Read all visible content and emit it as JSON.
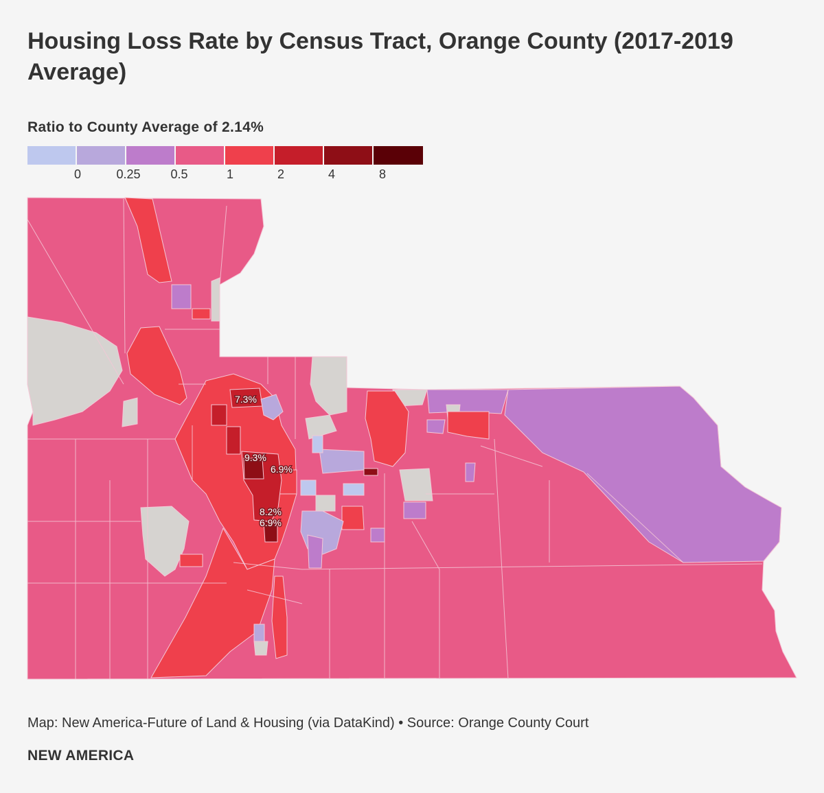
{
  "title": "Housing Loss Rate by Census Tract, Orange County (2017-2019 Average)",
  "legend": {
    "title": "Ratio to County Average of 2.14%",
    "bins": [
      {
        "color": "#bec8ee"
      },
      {
        "color": "#b8a8dc"
      },
      {
        "color": "#bd7ccb"
      },
      {
        "color": "#e85a87"
      },
      {
        "color": "#ef404c"
      },
      {
        "color": "#c51e2a"
      },
      {
        "color": "#8e0e16"
      },
      {
        "color": "#5a0006"
      }
    ],
    "ticks": [
      "0",
      "0.25",
      "0.5",
      "1",
      "2",
      "4",
      "8"
    ]
  },
  "map": {
    "colors": {
      "no_data": "#d6d3d0",
      "base": "#e85a87",
      "red": "#ef404c",
      "dark_red": "#c51e2a",
      "darker_red": "#8e0e16",
      "lavender": "#b8a8dc",
      "purple": "#bd7ccb",
      "light_blue": "#bec8ee",
      "border": "#f4c7d6"
    },
    "labels": [
      "7.3%",
      "9.3%",
      "6.9%",
      "8.2%",
      "6.9%"
    ]
  },
  "footer": {
    "credit": "Map: New America-Future of Land & Housing (via DataKind) • Source: Orange County Court",
    "brand": "NEW AMERICA"
  }
}
